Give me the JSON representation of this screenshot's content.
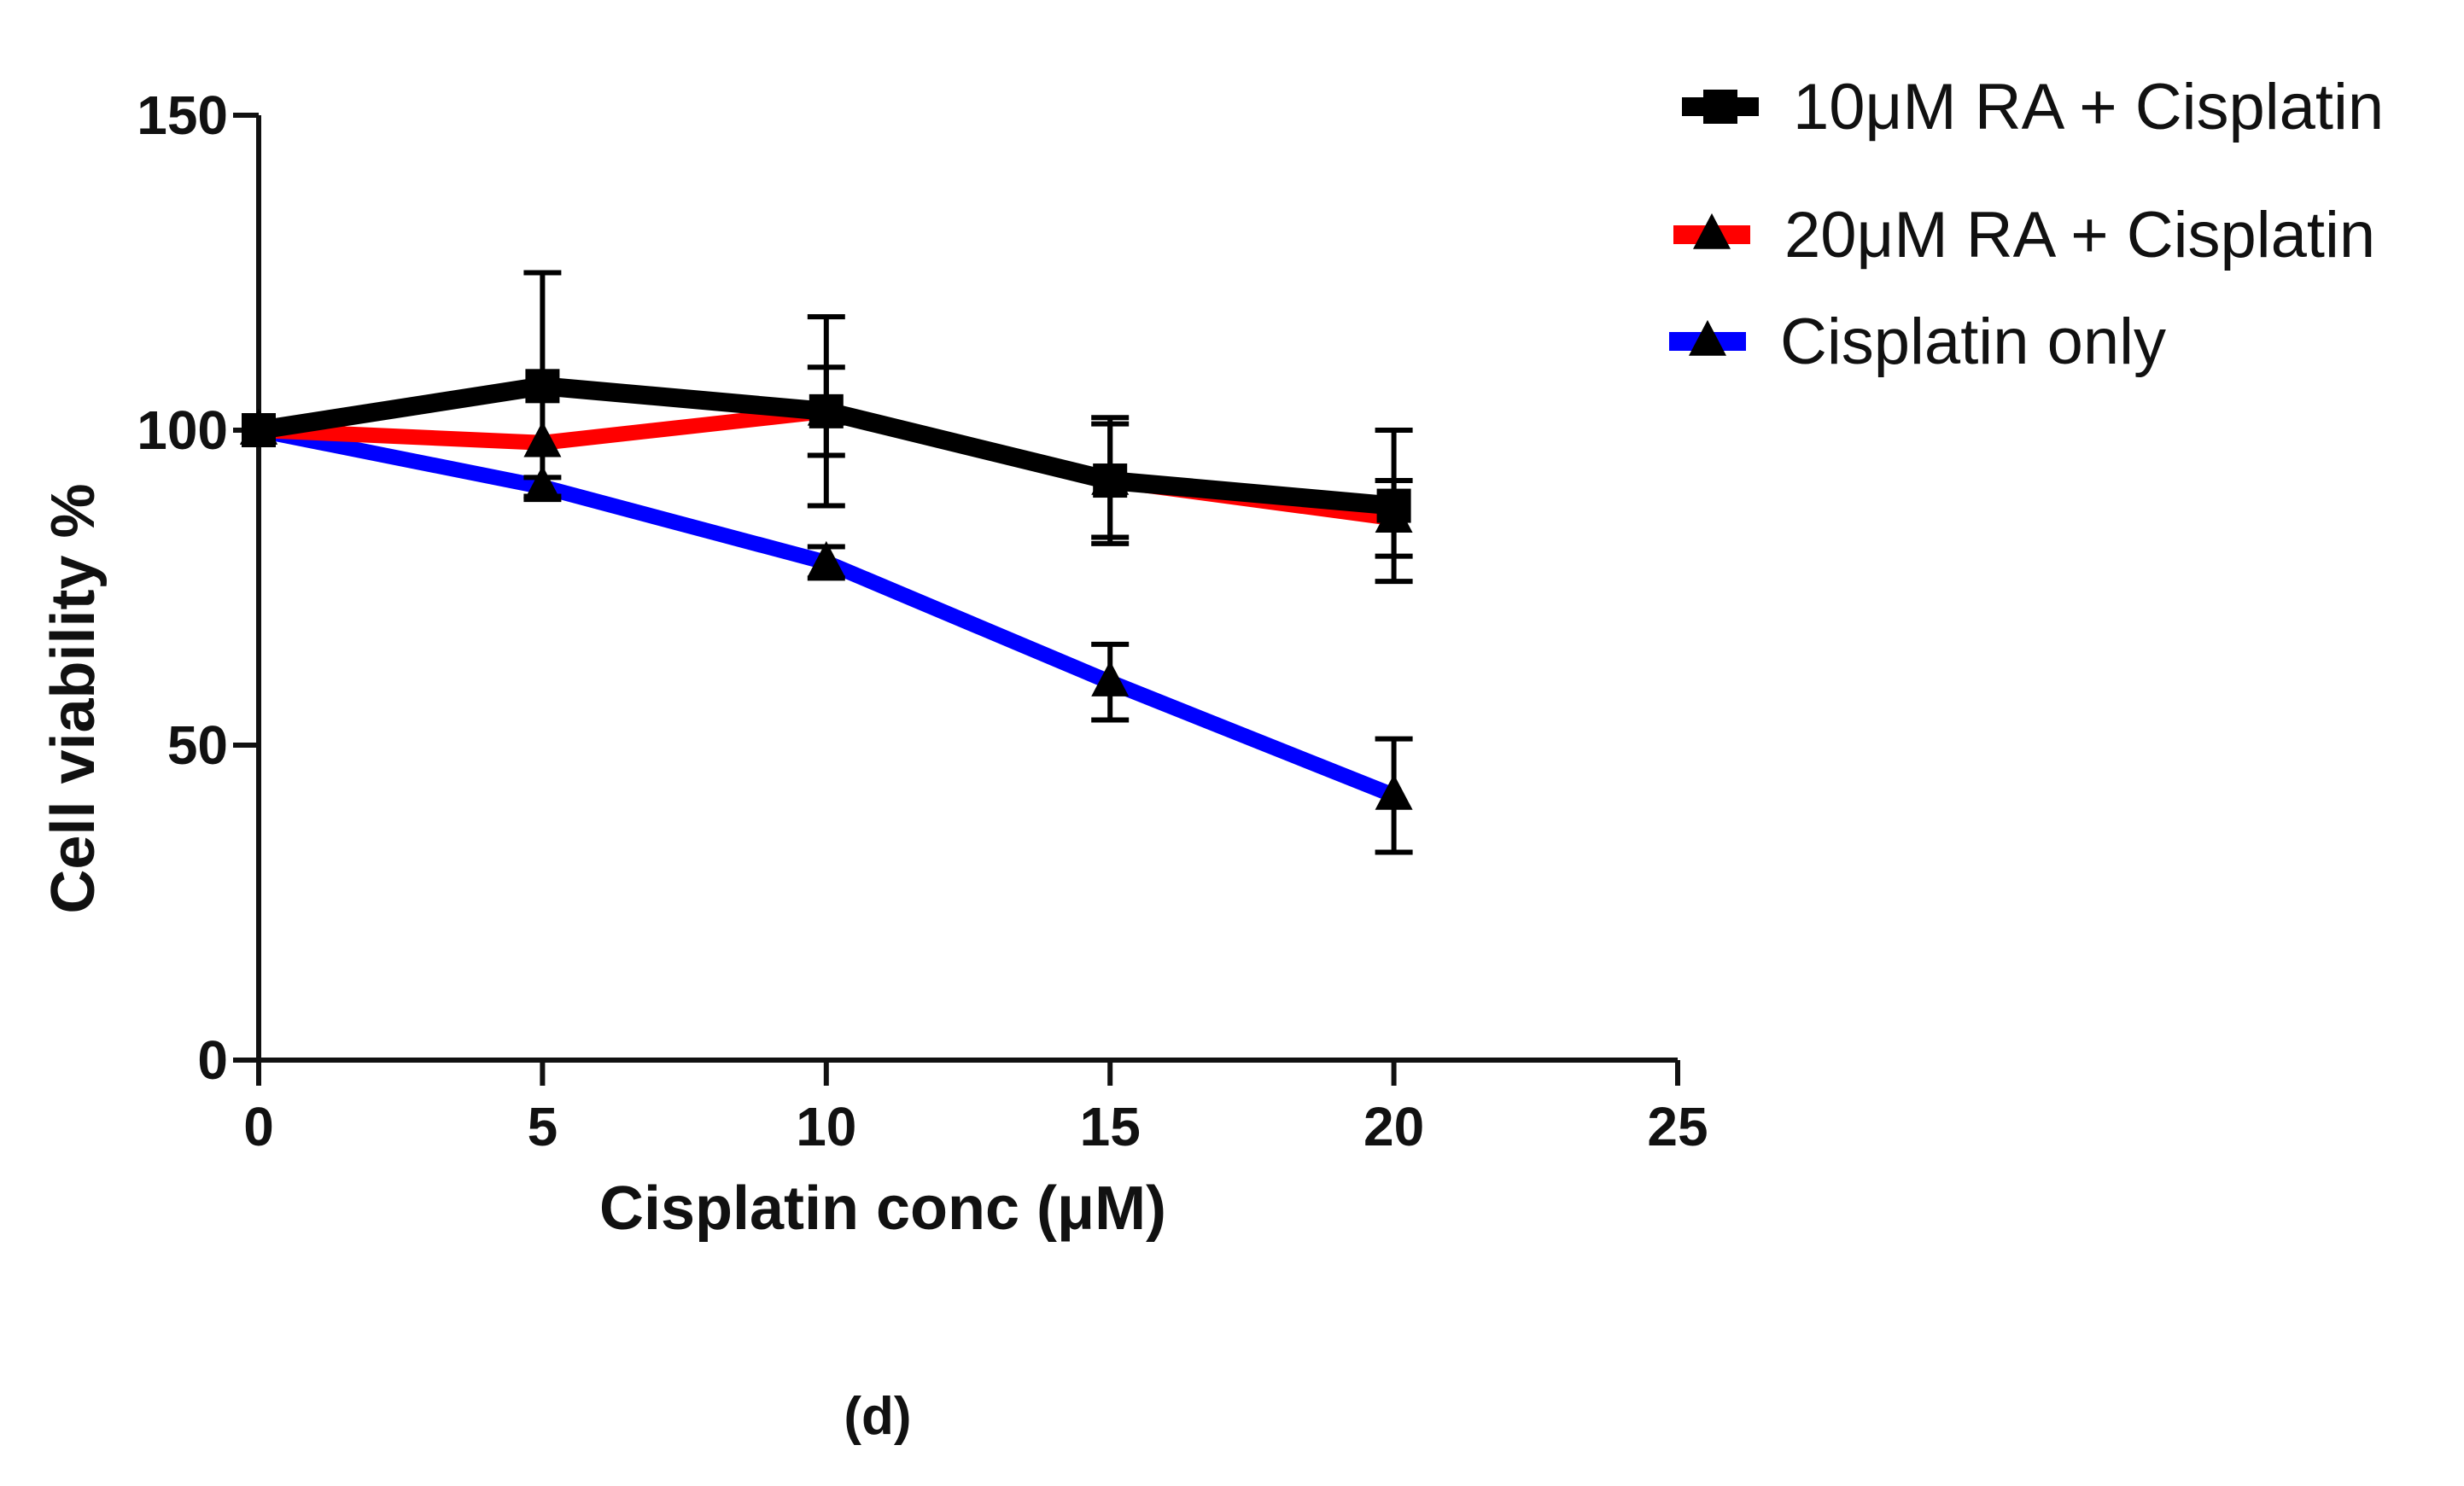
{
  "chart_data": {
    "type": "line",
    "title": "",
    "xlabel": "Cisplatin conc (μM)",
    "ylabel": "Cell viability %",
    "xlim": [
      0,
      25
    ],
    "ylim": [
      0,
      150
    ],
    "xticks": [
      "0",
      "5",
      "10",
      "15",
      "20",
      "25"
    ],
    "yticks": [
      "0",
      "50",
      "100",
      "150"
    ],
    "x": [
      0,
      5,
      10,
      15,
      20
    ],
    "grid": false,
    "legend_position": "top-right",
    "series": [
      {
        "name": "10μM RA + Cisplatin",
        "color": "#000000",
        "marker": "square",
        "values": [
          100,
          107,
          103,
          92,
          88
        ],
        "error": [
          0,
          18,
          15,
          10,
          12
        ]
      },
      {
        "name": "20μM RA + Cisplatin",
        "color": "#ff0000",
        "marker": "triangle",
        "values": [
          100,
          98,
          103,
          92,
          86
        ],
        "error": [
          0,
          0,
          7,
          9,
          6
        ]
      },
      {
        "name": "Cisplatin only",
        "color": "#0000ff",
        "marker": "triangle",
        "values": [
          100,
          91,
          79,
          60,
          42
        ],
        "error": [
          0,
          1.5,
          2.5,
          6,
          9
        ]
      }
    ],
    "panel_label": "(d)"
  }
}
